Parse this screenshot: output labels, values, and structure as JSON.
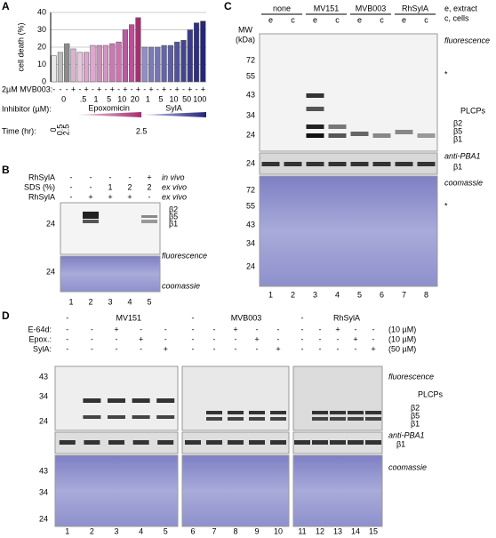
{
  "panels": {
    "a": "A",
    "b": "B",
    "c": "C",
    "d": "D"
  },
  "chart_data": {
    "type": "bar",
    "y_label": "cell death (%)",
    "ylim": [
      0,
      40
    ],
    "yticks": [
      0,
      10,
      20,
      30,
      40
    ],
    "values": [
      15,
      17,
      22,
      19,
      17,
      17,
      21,
      21,
      21,
      22,
      23,
      30,
      33,
      37,
      20,
      20,
      20,
      21,
      21,
      23,
      24,
      30,
      34,
      35
    ],
    "colors": [
      "#e8e8e8",
      "#bdbdbd",
      "#8c8c8c",
      "#d9b3d0",
      "#e8c6df",
      "#d9a6cc",
      "#dda8cf",
      "#cf8dbd",
      "#d793c2",
      "#c97ab3",
      "#cc74b1",
      "#b85b9f",
      "#c04c9b",
      "#a3306f",
      "#8f8fc4",
      "#7b7bb8",
      "#7474b5",
      "#6464aa",
      "#5e5ea8",
      "#52529e",
      "#444496",
      "#3a3a8e",
      "#2f2f86",
      "#25257a"
    ],
    "row_labels": {
      "mvb003": "2µM MVB003:",
      "inhibitor": "Inhibitor (µM):",
      "time": "Time (hr):"
    },
    "mvb003": [
      "-",
      "-",
      "-",
      "+",
      "-",
      "+",
      "-",
      "+",
      "-",
      "+",
      "-",
      "+",
      "-",
      "+",
      "-",
      "+",
      "-",
      "+",
      "-",
      "+",
      "-",
      "+",
      "-",
      "+"
    ],
    "concentrations": [
      "0",
      ".5",
      "1",
      "5",
      "10",
      "20",
      "1",
      "5",
      "10",
      "50",
      "100"
    ],
    "inhibitors": [
      "Epoxomicin",
      "SylA"
    ],
    "times": [
      "0",
      "0.5",
      "2.5",
      "2.5"
    ]
  },
  "panel_b": {
    "rows": [
      {
        "label": "RhSylA",
        "signs": [
          "-",
          "-",
          "-",
          "-",
          "+"
        ],
        "condition": "in vivo"
      },
      {
        "label": "SDS (%)",
        "signs": [
          "-",
          "-",
          "1",
          "2",
          "2"
        ],
        "condition": "ex vivo"
      },
      {
        "label": "RhSylA",
        "signs": [
          "-",
          "+",
          "+",
          "+",
          "-"
        ],
        "condition": "ex vivo"
      }
    ],
    "markers": [
      "24",
      "24"
    ],
    "bands": [
      "β2",
      "β5",
      "β1"
    ],
    "fluorescence": "fluorescence",
    "coomassie": "coomassie",
    "lanes": [
      "1",
      "2",
      "3",
      "4",
      "5"
    ]
  },
  "panel_c": {
    "groups": [
      "none",
      "MV151",
      "MVB003",
      "RhSylA"
    ],
    "sub": [
      "e",
      "c",
      "e",
      "c",
      "e",
      "c",
      "e",
      "c"
    ],
    "legend": [
      "e, extract",
      "c, cells"
    ],
    "mw": [
      "MW",
      "(kDa)"
    ],
    "markers_fl": [
      "72",
      "55",
      "43",
      "34",
      "24"
    ],
    "star": "*",
    "fluorescence": "fluorescence",
    "plcps": "PLCPs",
    "bands": [
      "β2",
      "β5",
      "β1"
    ],
    "anti": "anti-PBA1",
    "anti_marker": "24",
    "anti_band": "β1",
    "coomassie": "coomassie",
    "markers_co": [
      "72",
      "55",
      "43",
      "34",
      "24"
    ],
    "star_co": "*",
    "lanes": [
      "1",
      "2",
      "3",
      "4",
      "5",
      "6",
      "7",
      "8"
    ]
  },
  "panel_d": {
    "groups": [
      "-",
      "MV151",
      "-",
      "MVB003",
      "-",
      "RhSylA"
    ],
    "rows": [
      {
        "label": "E-64d:",
        "signs": [
          "-",
          "-",
          "+",
          "-",
          "-",
          "-",
          "-",
          "+",
          "-",
          "-",
          "-",
          "-",
          "+",
          "-",
          "-"
        ],
        "conc": "(10 µM)"
      },
      {
        "label": "Epox.:",
        "signs": [
          "-",
          "-",
          "-",
          "+",
          "-",
          "-",
          "-",
          "-",
          "+",
          "-",
          "-",
          "-",
          "-",
          "+",
          "-"
        ],
        "conc": "(10 µM)"
      },
      {
        "label": "SylA:",
        "signs": [
          "-",
          "-",
          "-",
          "-",
          "+",
          "-",
          "-",
          "-",
          "-",
          "+",
          "-",
          "-",
          "-",
          "-",
          "+"
        ],
        "conc": "(50 µM)"
      }
    ],
    "markers_fl": [
      "43",
      "34",
      "24"
    ],
    "fluorescence": "fluorescence",
    "plcps": "PLCPs",
    "bands": [
      "β2",
      "β5",
      "β1"
    ],
    "anti": "anti-PBA1",
    "anti_band": "β1",
    "coomassie": "coomassie",
    "markers_co": [
      "43",
      "34",
      "24"
    ],
    "lanes": [
      "1",
      "2",
      "3",
      "4",
      "5",
      "6",
      "7",
      "8",
      "9",
      "10",
      "11",
      "12",
      "13",
      "14",
      "15"
    ]
  }
}
